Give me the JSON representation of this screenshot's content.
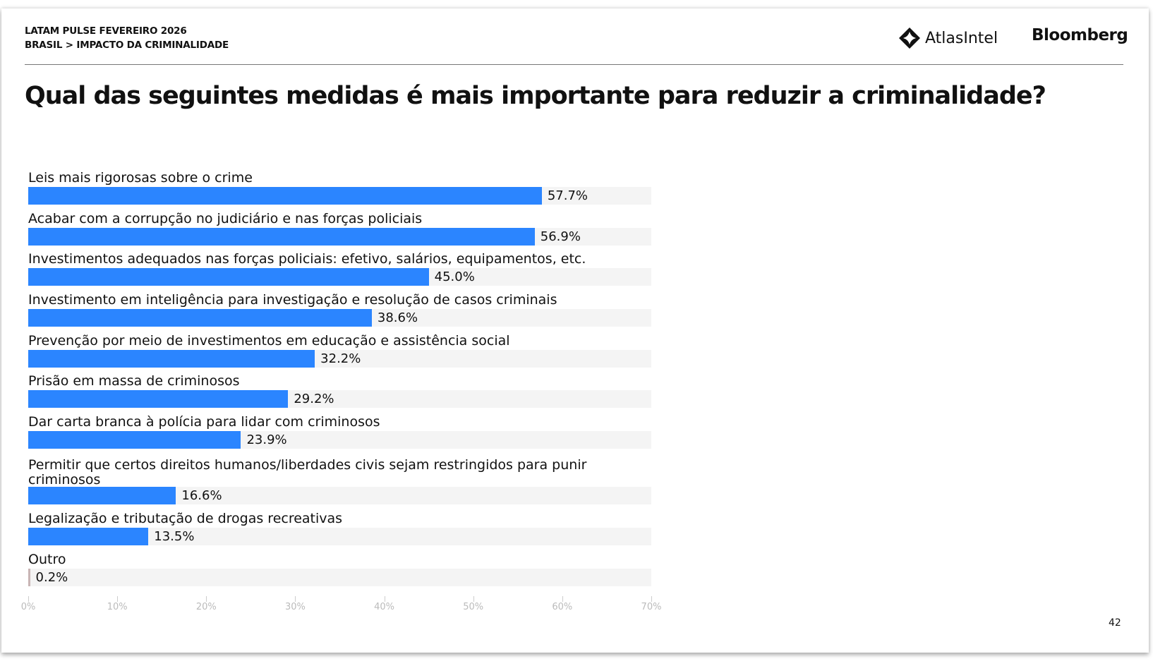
{
  "header": {
    "line1": "LATAM PULSE FEVEREIRO 2026",
    "line2": "BRASIL > IMPACTO DA CRIMINALIDADE"
  },
  "logos": {
    "atlas": "AtlasIntel",
    "bloomberg": "Bloomberg",
    "atlas_icon": "atlasintel-diamond-icon"
  },
  "page_number": "42",
  "colors": {
    "bar": "#2b85ff",
    "track": "#f4f4f4",
    "other_bar": "#c9b5b5"
  },
  "chart_data": {
    "type": "bar",
    "orientation": "horizontal",
    "title": "Qual das seguintes medidas é mais importante para reduzir a criminalidade?",
    "categories": [
      "Leis mais rigorosas sobre o crime",
      "Acabar com a corrupção no judiciário e nas forças policiais",
      "Investimentos adequados nas forças policiais: efetivo, salários, equipamentos, etc.",
      "Investimento em inteligência para investigação e resolução de casos criminais",
      "Prevenção por meio de investimentos em educação e assistência social",
      "Prisão em massa de criminosos",
      "Dar carta branca à polícia para lidar com criminosos",
      "Permitir que certos direitos humanos/liberdades civis sejam restringidos para punir criminosos",
      "Legalização e tributação de drogas recreativas",
      "Outro"
    ],
    "values": [
      57.7,
      56.9,
      45.0,
      38.6,
      32.2,
      29.2,
      23.9,
      16.6,
      13.5,
      0.2
    ],
    "value_labels": [
      "57.7%",
      "56.9%",
      "45.0%",
      "38.6%",
      "32.2%",
      "29.2%",
      "23.9%",
      "16.6%",
      "13.5%",
      "0.2%"
    ],
    "xlim": [
      0,
      70
    ],
    "xticks": [
      "0%",
      "10%",
      "20%",
      "30%",
      "40%",
      "50%",
      "60%",
      "70%"
    ],
    "grid": false
  }
}
